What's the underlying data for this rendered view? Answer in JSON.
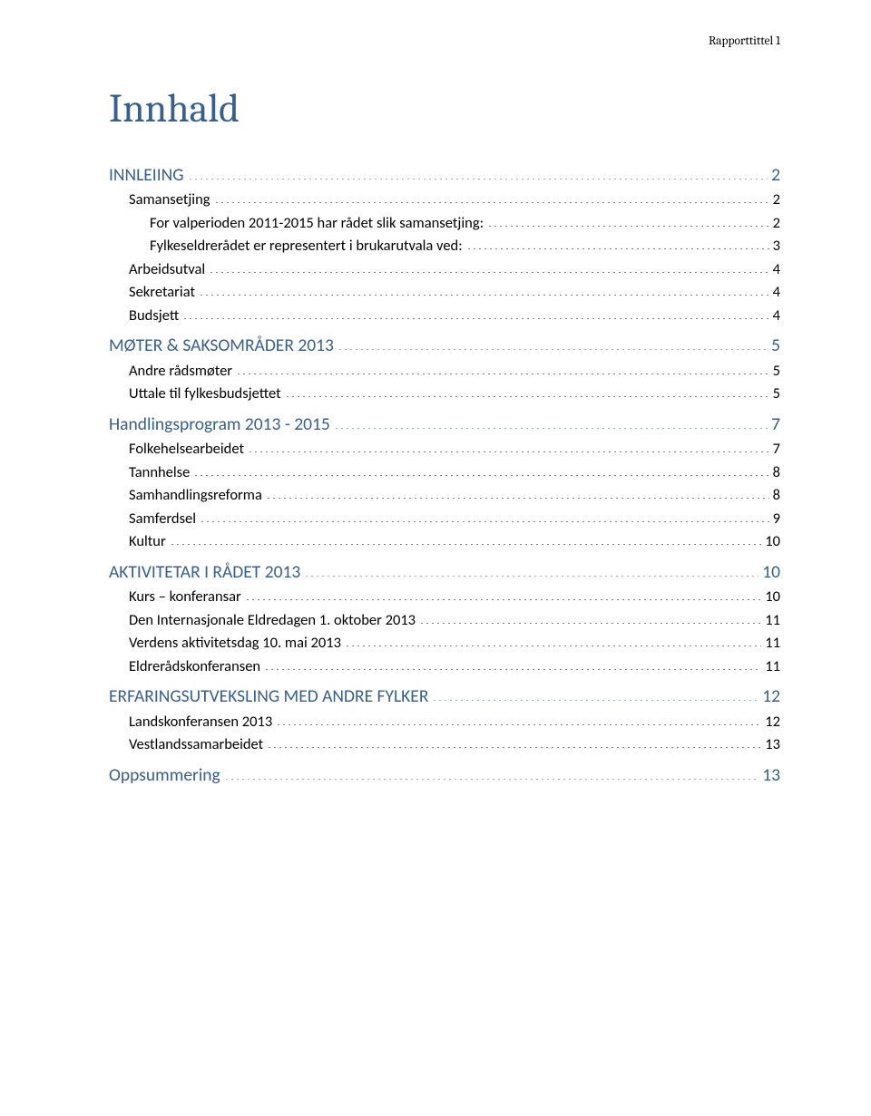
{
  "running_header": "Rapporttittel 1",
  "title": "Innhald",
  "colors": {
    "heading_blue": "#376091",
    "link_blue": "#365f91",
    "body_black": "#000000",
    "background": "#ffffff"
  },
  "typography": {
    "title_fontsize": 44,
    "l1_fontsize": 19.5,
    "l2_fontsize": 16.5,
    "running_header_fontsize": 13.5,
    "title_font": "Cambria",
    "body_font": "Calibri"
  },
  "toc": [
    {
      "level": 1,
      "label": "INNLEIING",
      "page": "2"
    },
    {
      "level": 2,
      "label": "Samansetjing",
      "page": "2"
    },
    {
      "level": 3,
      "label": "For valperioden 2011-2015 har rådet slik samansetjing:",
      "page": "2"
    },
    {
      "level": 3,
      "label": "Fylkeseldrerådet er representert i brukarutvala ved:",
      "page": "3"
    },
    {
      "level": 2,
      "label": "Arbeidsutval",
      "page": "4"
    },
    {
      "level": 2,
      "label": "Sekretariat",
      "page": "4"
    },
    {
      "level": 2,
      "label": "Budsjett",
      "page": "4"
    },
    {
      "level": 1,
      "label": "MØTER &  SAKSOMRÅDER 2013",
      "page": "5"
    },
    {
      "level": 2,
      "label": "Andre rådsmøter",
      "page": "5"
    },
    {
      "level": 2,
      "label": "Uttale til fylkesbudsjettet",
      "page": "5"
    },
    {
      "level": 1,
      "label": "Handlingsprogram 2013 - 2015",
      "page": "7"
    },
    {
      "level": 2,
      "label": "Folkehelsearbeidet",
      "page": "7"
    },
    {
      "level": 2,
      "label": "Tannhelse",
      "page": "8"
    },
    {
      "level": 2,
      "label": "Samhandlingsreforma",
      "page": "8"
    },
    {
      "level": 2,
      "label": "Samferdsel",
      "page": "9"
    },
    {
      "level": 2,
      "label": "Kultur",
      "page": "10"
    },
    {
      "level": 1,
      "label": "AKTIVITETAR I RÅDET 2013",
      "page": "10"
    },
    {
      "level": 2,
      "label": "Kurs – konferansar",
      "page": "10"
    },
    {
      "level": 2,
      "label": "Den Internasjonale Eldredagen 1. oktober 2013",
      "page": "11"
    },
    {
      "level": 2,
      "label": "Verdens aktivitetsdag 10. mai 2013",
      "page": "11"
    },
    {
      "level": 2,
      "label": "Eldrerådskonferansen",
      "page": "11"
    },
    {
      "level": 1,
      "label": "ERFARINGSUTVEKSLING MED ANDRE FYLKER",
      "page": "12"
    },
    {
      "level": 2,
      "label": "Landskonferansen 2013",
      "page": "12"
    },
    {
      "level": 2,
      "label": "Vestlandssamarbeidet",
      "page": "13"
    },
    {
      "level": 1,
      "label": "Oppsummering",
      "page": "13"
    }
  ]
}
